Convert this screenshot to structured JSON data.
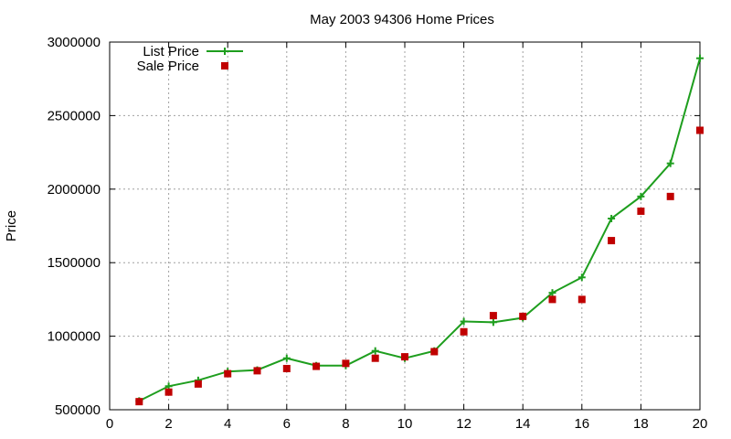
{
  "chart_data": {
    "type": "line",
    "title": "May 2003 94306 Home Prices",
    "xlabel": "",
    "ylabel": "Price",
    "xlim": [
      0,
      20
    ],
    "ylim": [
      500000,
      3000000
    ],
    "x_ticks": [
      "0",
      "2",
      "4",
      "6",
      "8",
      "10",
      "12",
      "14",
      "16",
      "18",
      "20"
    ],
    "y_ticks": [
      "500000",
      "1000000",
      "1500000",
      "2000000",
      "2500000",
      "3000000"
    ],
    "grid": true,
    "legend_position": "top-left",
    "series": [
      {
        "name": "List Price",
        "style": "line-with-plus-markers",
        "color": "#1e9e1e",
        "x": [
          1,
          2,
          3,
          4,
          5,
          6,
          7,
          8,
          9,
          10,
          11,
          12,
          13,
          14,
          15,
          16,
          17,
          18,
          19,
          20
        ],
        "values": [
          560000,
          660000,
          700000,
          760000,
          770000,
          850000,
          800000,
          800000,
          900000,
          850000,
          900000,
          1100000,
          1095000,
          1125000,
          1295000,
          1400000,
          1800000,
          1950000,
          2175000,
          2890000
        ]
      },
      {
        "name": "Sale Price",
        "style": "square-markers",
        "color": "#c00000",
        "x": [
          1,
          2,
          3,
          4,
          5,
          6,
          7,
          8,
          9,
          10,
          11,
          12,
          13,
          14,
          15,
          16,
          17,
          18,
          19,
          20
        ],
        "values": [
          555000,
          620000,
          675000,
          745000,
          765000,
          780000,
          795000,
          815000,
          850000,
          860000,
          895000,
          1030000,
          1140000,
          1135000,
          1250000,
          1250000,
          1650000,
          1850000,
          1950000,
          2400000
        ]
      }
    ]
  }
}
